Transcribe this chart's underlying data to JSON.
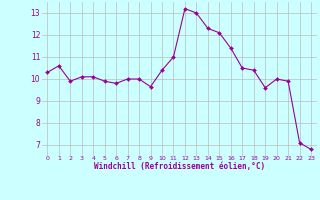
{
  "x": [
    0,
    1,
    2,
    3,
    4,
    5,
    6,
    7,
    8,
    9,
    10,
    11,
    12,
    13,
    14,
    15,
    16,
    17,
    18,
    19,
    20,
    21,
    22,
    23
  ],
  "y": [
    10.3,
    10.6,
    9.9,
    10.1,
    10.1,
    9.9,
    9.8,
    10.0,
    10.0,
    9.65,
    10.4,
    11.0,
    13.2,
    13.0,
    12.3,
    12.1,
    11.4,
    10.5,
    10.4,
    9.6,
    10.0,
    9.9,
    7.1,
    6.8
  ],
  "line_color": "#990099",
  "marker": "D",
  "marker_size": 2,
  "bg_color": "#ccffff",
  "grid_color": "#bbbbbb",
  "xlabel": "Windchill (Refroidissement éolien,°C)",
  "xlabel_color": "#990099",
  "tick_color": "#990099",
  "ylim": [
    6.5,
    13.5
  ],
  "xlim": [
    -0.5,
    23.5
  ],
  "yticks": [
    7,
    8,
    9,
    10,
    11,
    12,
    13
  ],
  "xticks": [
    0,
    1,
    2,
    3,
    4,
    5,
    6,
    7,
    8,
    9,
    10,
    11,
    12,
    13,
    14,
    15,
    16,
    17,
    18,
    19,
    20,
    21,
    22,
    23
  ]
}
